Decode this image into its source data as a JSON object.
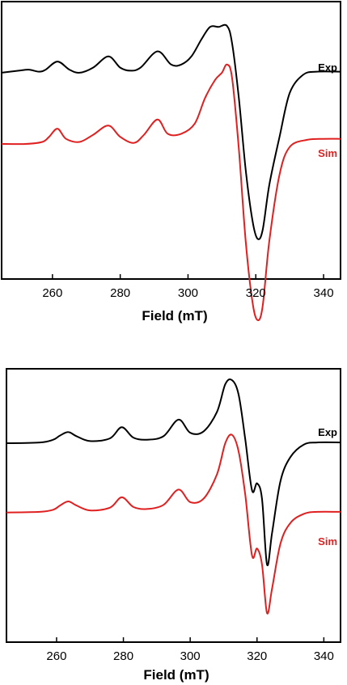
{
  "chart_data": [
    {
      "type": "line",
      "xlabel": "Field (mT)",
      "ylabel": "",
      "xlim": [
        245,
        345
      ],
      "xticks": [
        260,
        280,
        300,
        320,
        340
      ],
      "yaxis": "arbitrary units, no ticks",
      "series": [
        {
          "name": "Exp",
          "color": "#000000",
          "x": [
            245,
            250,
            253,
            256,
            258,
            261.5,
            265,
            268,
            272,
            276.5,
            280,
            283,
            286,
            291,
            295,
            298,
            301,
            304,
            306.5,
            309,
            311.5,
            313,
            315,
            317,
            319,
            320.5,
            322,
            324,
            327,
            330,
            334,
            338,
            345
          ],
          "y": [
            0.55,
            0.57,
            0.58,
            0.56,
            0.58,
            0.66,
            0.58,
            0.55,
            0.6,
            0.71,
            0.6,
            0.57,
            0.6,
            0.76,
            0.63,
            0.63,
            0.71,
            0.88,
            1.0,
            1.0,
            1.01,
            0.84,
            0.3,
            -0.4,
            -0.9,
            -1.08,
            -1.0,
            -0.55,
            -0.08,
            0.35,
            0.53,
            0.56,
            0.56
          ]
        },
        {
          "name": "Sim",
          "color": "#e02020",
          "x": [
            245,
            252,
            257,
            259,
            261.5,
            264,
            268,
            272,
            276.5,
            280,
            284,
            287,
            291,
            294,
            298,
            302,
            305,
            308,
            310,
            311.5,
            313,
            315,
            317,
            319,
            320.5,
            322,
            324,
            327,
            330,
            335,
            340,
            345
          ],
          "y": [
            -0.15,
            -0.15,
            -0.13,
            -0.08,
            0.0,
            -0.1,
            -0.13,
            -0.06,
            0.03,
            -0.08,
            -0.14,
            -0.06,
            0.09,
            -0.05,
            -0.05,
            0.05,
            0.3,
            0.48,
            0.55,
            0.63,
            0.5,
            -0.2,
            -1.1,
            -1.7,
            -1.88,
            -1.75,
            -1.1,
            -0.45,
            -0.18,
            -0.11,
            -0.1,
            -0.1
          ]
        }
      ],
      "annotations": [
        "Exp",
        "Sim"
      ]
    },
    {
      "type": "line",
      "xlabel": "Field (mT)",
      "ylabel": "",
      "xlim": [
        245,
        345
      ],
      "xticks": [
        260,
        280,
        300,
        320,
        340
      ],
      "yaxis": "arbitrary units, no ticks",
      "series": [
        {
          "name": "Exp",
          "color": "#000000",
          "x": [
            245,
            255,
            259,
            261,
            263.5,
            266,
            270,
            276,
            279.5,
            283,
            287,
            292,
            296.5,
            300,
            304,
            308,
            310.5,
            312.5,
            314.5,
            316.5,
            318.5,
            320,
            321.5,
            323,
            324.5,
            327,
            330,
            334,
            338,
            345
          ],
          "y": [
            0.0,
            0.01,
            0.05,
            0.11,
            0.16,
            0.1,
            0.03,
            0.07,
            0.23,
            0.08,
            0.05,
            0.1,
            0.34,
            0.15,
            0.17,
            0.45,
            0.85,
            0.91,
            0.7,
            0.05,
            -0.68,
            -0.58,
            -0.8,
            -1.75,
            -1.3,
            -0.55,
            -0.2,
            -0.02,
            0.01,
            0.01
          ]
        },
        {
          "name": "Sim",
          "color": "#e02020",
          "x": [
            245,
            255,
            259,
            261,
            263.5,
            266,
            270,
            276,
            279.5,
            283,
            287,
            292,
            296.5,
            300,
            304,
            308,
            310.5,
            312.5,
            314.5,
            316.5,
            318.5,
            320,
            321.5,
            323,
            324.5,
            327,
            330,
            334,
            338,
            345
          ],
          "y": [
            -1.0,
            -0.99,
            -0.96,
            -0.9,
            -0.84,
            -0.9,
            -0.97,
            -0.93,
            -0.78,
            -0.92,
            -0.95,
            -0.89,
            -0.67,
            -0.85,
            -0.8,
            -0.45,
            0.0,
            0.12,
            -0.12,
            -0.75,
            -1.62,
            -1.52,
            -1.75,
            -2.45,
            -2.1,
            -1.45,
            -1.15,
            -1.02,
            -0.99,
            -0.99
          ]
        }
      ],
      "annotations": [
        "Exp",
        "Sim"
      ]
    }
  ]
}
